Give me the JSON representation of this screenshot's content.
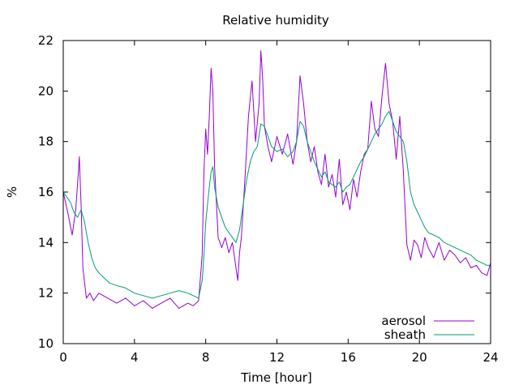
{
  "chart_data": {
    "type": "line",
    "title": "Relative humidity",
    "xlabel": "Time [hour]",
    "ylabel": "%",
    "xlim": [
      0,
      24
    ],
    "ylim": [
      10,
      22
    ],
    "xticks": [
      0,
      4,
      8,
      12,
      16,
      20,
      24
    ],
    "yticks": [
      10,
      12,
      14,
      16,
      18,
      20,
      22
    ],
    "grid": false,
    "legend_position": "bottom-right",
    "series": [
      {
        "name": "aerosol",
        "color": "#9400d3",
        "x": [
          0,
          0.25,
          0.5,
          0.7,
          0.85,
          0.9,
          1.0,
          1.1,
          1.3,
          1.5,
          1.7,
          2.0,
          2.5,
          3.0,
          3.5,
          4.0,
          4.5,
          5.0,
          5.5,
          6.0,
          6.5,
          7.0,
          7.3,
          7.6,
          7.8,
          7.9,
          8.0,
          8.1,
          8.2,
          8.3,
          8.4,
          8.5,
          8.7,
          8.9,
          9.1,
          9.3,
          9.5,
          9.7,
          9.8,
          9.9,
          10.0,
          10.2,
          10.4,
          10.6,
          10.8,
          11.0,
          11.1,
          11.2,
          11.3,
          11.5,
          11.7,
          12.0,
          12.3,
          12.6,
          12.9,
          13.1,
          13.3,
          13.5,
          13.7,
          13.9,
          14.1,
          14.3,
          14.5,
          14.7,
          14.9,
          15.1,
          15.3,
          15.5,
          15.7,
          15.9,
          16.1,
          16.3,
          16.5,
          16.7,
          16.9,
          17.1,
          17.3,
          17.5,
          17.7,
          17.9,
          18.1,
          18.3,
          18.5,
          18.7,
          18.9,
          19.1,
          19.3,
          19.5,
          19.7,
          19.9,
          20.1,
          20.3,
          20.5,
          20.8,
          21.1,
          21.4,
          21.7,
          22.0,
          22.3,
          22.6,
          22.9,
          23.2,
          23.5,
          23.8,
          24.0
        ],
        "y": [
          16.0,
          15.2,
          14.3,
          15.3,
          16.8,
          17.4,
          15.5,
          13.0,
          11.8,
          12.0,
          11.7,
          12.0,
          11.8,
          11.6,
          11.8,
          11.5,
          11.7,
          11.4,
          11.6,
          11.8,
          11.4,
          11.6,
          11.5,
          11.7,
          13.5,
          16.8,
          18.5,
          17.5,
          19.0,
          20.9,
          20.0,
          17.0,
          14.2,
          13.8,
          14.2,
          13.6,
          14.0,
          13.0,
          12.5,
          13.6,
          14.2,
          16.5,
          19.0,
          20.4,
          18.0,
          19.5,
          21.6,
          20.5,
          18.6,
          17.8,
          17.2,
          18.2,
          17.5,
          18.3,
          17.1,
          18.0,
          20.6,
          19.5,
          18.0,
          17.2,
          17.8,
          16.8,
          16.3,
          17.5,
          16.2,
          16.7,
          15.8,
          17.3,
          15.5,
          16.0,
          15.3,
          16.5,
          15.8,
          16.8,
          17.5,
          17.7,
          19.6,
          18.5,
          18.2,
          19.8,
          21.1,
          19.5,
          18.8,
          17.3,
          19.0,
          16.8,
          13.9,
          13.3,
          14.1,
          13.9,
          13.4,
          14.2,
          13.8,
          13.4,
          14.0,
          13.3,
          13.7,
          13.5,
          13.2,
          13.4,
          13.0,
          13.1,
          12.8,
          12.7,
          13.2
        ]
      },
      {
        "name": "sheath",
        "color": "#009e73",
        "x": [
          0,
          0.2,
          0.4,
          0.6,
          0.8,
          1.0,
          1.2,
          1.4,
          1.6,
          1.8,
          2.0,
          2.3,
          2.6,
          3.0,
          3.5,
          4.0,
          4.5,
          5.0,
          5.5,
          6.0,
          6.5,
          7.0,
          7.3,
          7.6,
          7.8,
          7.9,
          8.0,
          8.1,
          8.2,
          8.3,
          8.4,
          8.5,
          8.7,
          8.9,
          9.1,
          9.3,
          9.5,
          9.7,
          9.9,
          10.1,
          10.3,
          10.5,
          10.7,
          10.9,
          11.1,
          11.3,
          11.5,
          11.7,
          12.0,
          12.3,
          12.6,
          12.9,
          13.1,
          13.3,
          13.5,
          13.7,
          13.9,
          14.1,
          14.3,
          14.5,
          14.7,
          14.9,
          15.1,
          15.3,
          15.5,
          15.7,
          15.9,
          16.1,
          16.3,
          16.5,
          16.7,
          16.9,
          17.1,
          17.3,
          17.5,
          17.7,
          17.9,
          18.1,
          18.3,
          18.5,
          18.7,
          18.9,
          19.1,
          19.3,
          19.5,
          19.7,
          19.9,
          20.1,
          20.3,
          20.5,
          20.8,
          21.1,
          21.4,
          21.7,
          22.0,
          22.3,
          22.6,
          22.9,
          23.2,
          23.5,
          23.8,
          24.0
        ],
        "y": [
          16.0,
          15.8,
          15.6,
          15.2,
          15.0,
          15.3,
          14.8,
          14.0,
          13.4,
          13.0,
          12.8,
          12.6,
          12.4,
          12.3,
          12.2,
          12.0,
          11.9,
          11.8,
          11.9,
          12.0,
          12.1,
          12.0,
          11.9,
          11.8,
          12.5,
          13.5,
          14.8,
          15.5,
          16.2,
          16.8,
          17.0,
          16.2,
          15.4,
          15.0,
          14.6,
          14.4,
          14.2,
          14.0,
          14.5,
          15.5,
          16.5,
          17.2,
          17.6,
          17.8,
          18.7,
          18.6,
          18.2,
          17.8,
          17.6,
          17.7,
          17.4,
          17.6,
          18.0,
          18.8,
          18.6,
          18.0,
          17.6,
          17.2,
          16.9,
          16.6,
          16.8,
          16.4,
          16.3,
          16.2,
          16.4,
          16.0,
          16.2,
          16.3,
          16.6,
          16.9,
          17.2,
          17.4,
          17.7,
          18.0,
          18.3,
          18.5,
          18.7,
          19.0,
          19.2,
          18.8,
          18.4,
          18.2,
          18.0,
          17.2,
          16.0,
          15.5,
          15.2,
          14.9,
          14.6,
          14.4,
          14.3,
          14.2,
          14.0,
          13.9,
          13.8,
          13.7,
          13.6,
          13.5,
          13.3,
          13.2,
          13.1,
          13.1
        ]
      }
    ]
  }
}
